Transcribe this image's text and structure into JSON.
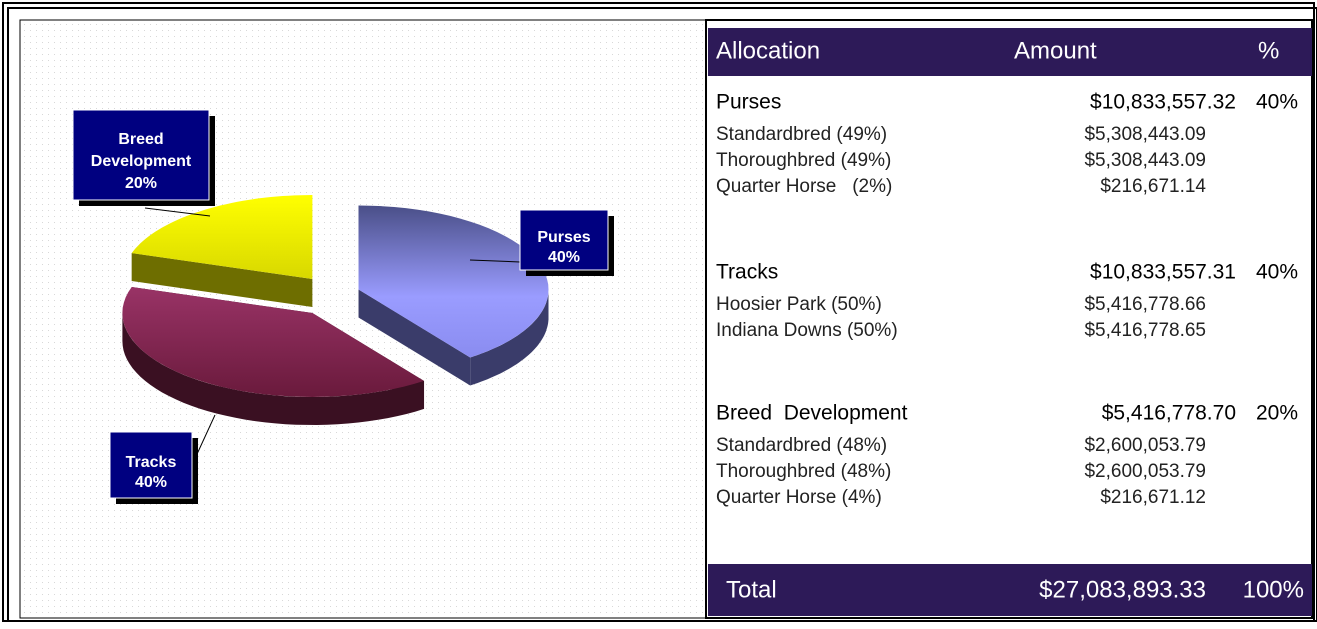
{
  "chart_data": {
    "type": "pie",
    "categories": [
      "Purses",
      "Tracks",
      "Breed Development"
    ],
    "values": [
      40,
      40,
      20
    ],
    "value_labels": [
      "40%",
      "40%",
      "20%"
    ],
    "colors": [
      "#9a9cff",
      "#993366",
      "#ffff00"
    ]
  },
  "table": {
    "header": [
      "Allocation",
      "Amount",
      "%"
    ],
    "groups": [
      {
        "name": "Purses",
        "amount": "$10,833,557.32",
        "percent": "40%",
        "rows": [
          [
            "Standardbred (49%)",
            "$5,308,443.09"
          ],
          [
            "Thoroughbred (49%)",
            "$5,308,443.09"
          ],
          [
            "Quarter Horse   (2%)",
            "$216,671.14"
          ]
        ]
      },
      {
        "name": "Tracks",
        "amount": "$10,833,557.31",
        "percent": "40%",
        "rows": [
          [
            "Hoosier Park (50%)",
            "$5,416,778.66"
          ],
          [
            "Indiana Downs (50%)",
            "$5,416,778.65"
          ]
        ]
      },
      {
        "name": "Breed  Development",
        "amount": "$5,416,778.70",
        "percent": "20%",
        "rows": [
          [
            "Standardbred (48%)",
            "$2,600,053.79"
          ],
          [
            "Thoroughbred (48%)",
            "$2,600,053.79"
          ],
          [
            "Quarter Horse (4%)",
            "$216,671.12"
          ]
        ]
      }
    ],
    "total": [
      "Total",
      "$27,083,893.33",
      "100%"
    ]
  }
}
